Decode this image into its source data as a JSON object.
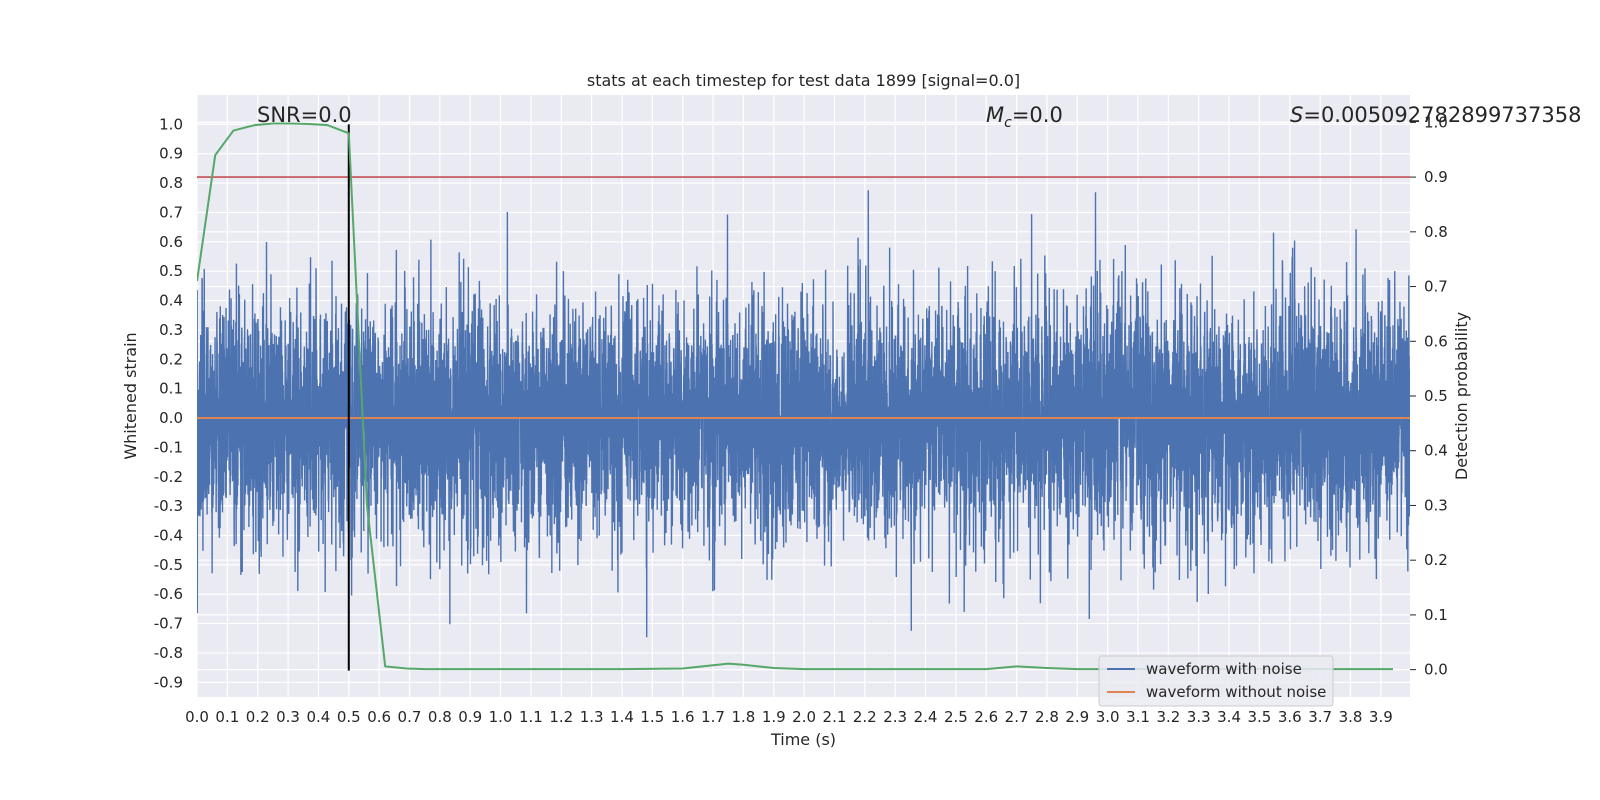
{
  "chart_data": {
    "type": "line",
    "title": "stats at each timestep for test data 1899 [signal=0.0]",
    "xlabel": "Time (s)",
    "ylabel": "Whitened strain",
    "y2label": "Detection probability",
    "xlim": [
      0.0,
      3.996
    ],
    "ylim": [
      -0.95,
      1.1
    ],
    "y2lim": [
      -0.05,
      1.05
    ],
    "xticks": [
      "0.0",
      "0.1",
      "0.2",
      "0.3",
      "0.4",
      "0.5",
      "0.6",
      "0.7",
      "0.8",
      "0.9",
      "1.0",
      "1.1",
      "1.2",
      "1.3",
      "1.4",
      "1.5",
      "1.6",
      "1.7",
      "1.8",
      "1.9",
      "2.0",
      "2.1",
      "2.2",
      "2.3",
      "2.4",
      "2.5",
      "2.6",
      "2.7",
      "2.8",
      "2.9",
      "3.0",
      "3.1",
      "3.2",
      "3.3",
      "3.4",
      "3.5",
      "3.6",
      "3.7",
      "3.8",
      "3.9"
    ],
    "yticks": [
      "1.0",
      "0.9",
      "0.8",
      "0.7",
      "0.6",
      "0.5",
      "0.4",
      "0.3",
      "0.2",
      "0.1",
      "0.0",
      "-0.1",
      "-0.2",
      "-0.3",
      "-0.4",
      "-0.5",
      "-0.6",
      "-0.7",
      "-0.8",
      "-0.9"
    ],
    "y2ticks": [
      "0.0",
      "0.1",
      "0.2",
      "0.3",
      "0.4",
      "0.5",
      "0.6",
      "0.7",
      "0.8",
      "0.9",
      "1.0"
    ],
    "annotations": {
      "snr": "SNR=0.0",
      "mc_symbol": "M",
      "mc_sub": "c",
      "mc_value": "=0.0",
      "s_symbol": "S",
      "s_value": "=0.005092782899737358"
    },
    "series": [
      {
        "name": "waveform with noise",
        "color": "#4c72b0",
        "axis": "left",
        "kind": "noise",
        "sample_rate": 2048,
        "envelope": [
          0.34,
          -0.4
        ]
      },
      {
        "name": "waveform without noise",
        "color": "#dd8452",
        "axis": "left",
        "x": [
          0.0,
          3.996
        ],
        "y": [
          0.0,
          0.0
        ]
      },
      {
        "axis": "right",
        "color": "#55a868",
        "x": [
          0.0,
          0.06,
          0.12,
          0.19,
          0.25,
          0.31,
          0.37,
          0.43,
          0.5,
          0.56,
          0.62,
          0.69,
          0.75,
          0.81,
          0.87,
          1.0,
          1.2,
          1.4,
          1.6,
          1.65,
          1.75,
          1.8,
          1.9,
          2.0,
          2.2,
          2.4,
          2.6,
          2.7,
          2.8,
          2.9,
          3.0,
          3.2,
          3.4,
          3.6,
          3.8,
          3.94
        ],
        "y": [
          0.71,
          0.94,
          0.985,
          0.995,
          0.998,
          0.998,
          0.997,
          0.995,
          0.98,
          0.3,
          0.006,
          0.002,
          0.001,
          0.001,
          0.001,
          0.001,
          0.001,
          0.001,
          0.002,
          0.005,
          0.011,
          0.009,
          0.003,
          0.001,
          0.001,
          0.001,
          0.001,
          0.006,
          0.003,
          0.001,
          0.001,
          0.001,
          0.001,
          0.001,
          0.001,
          0.001
        ]
      }
    ],
    "hlines": [
      {
        "axis": "right",
        "y": 0.9,
        "color": "#c44e52"
      }
    ],
    "vlines": [
      {
        "x": 0.5,
        "y0": -0.86,
        "y1": 1.0,
        "color": "#000000"
      }
    ],
    "legend": {
      "placement": "lower-right",
      "entries": [
        "waveform with noise",
        "waveform without noise"
      ]
    },
    "grid": true,
    "style": {
      "background": "#eaeaf2",
      "grid": "#ffffff"
    }
  }
}
